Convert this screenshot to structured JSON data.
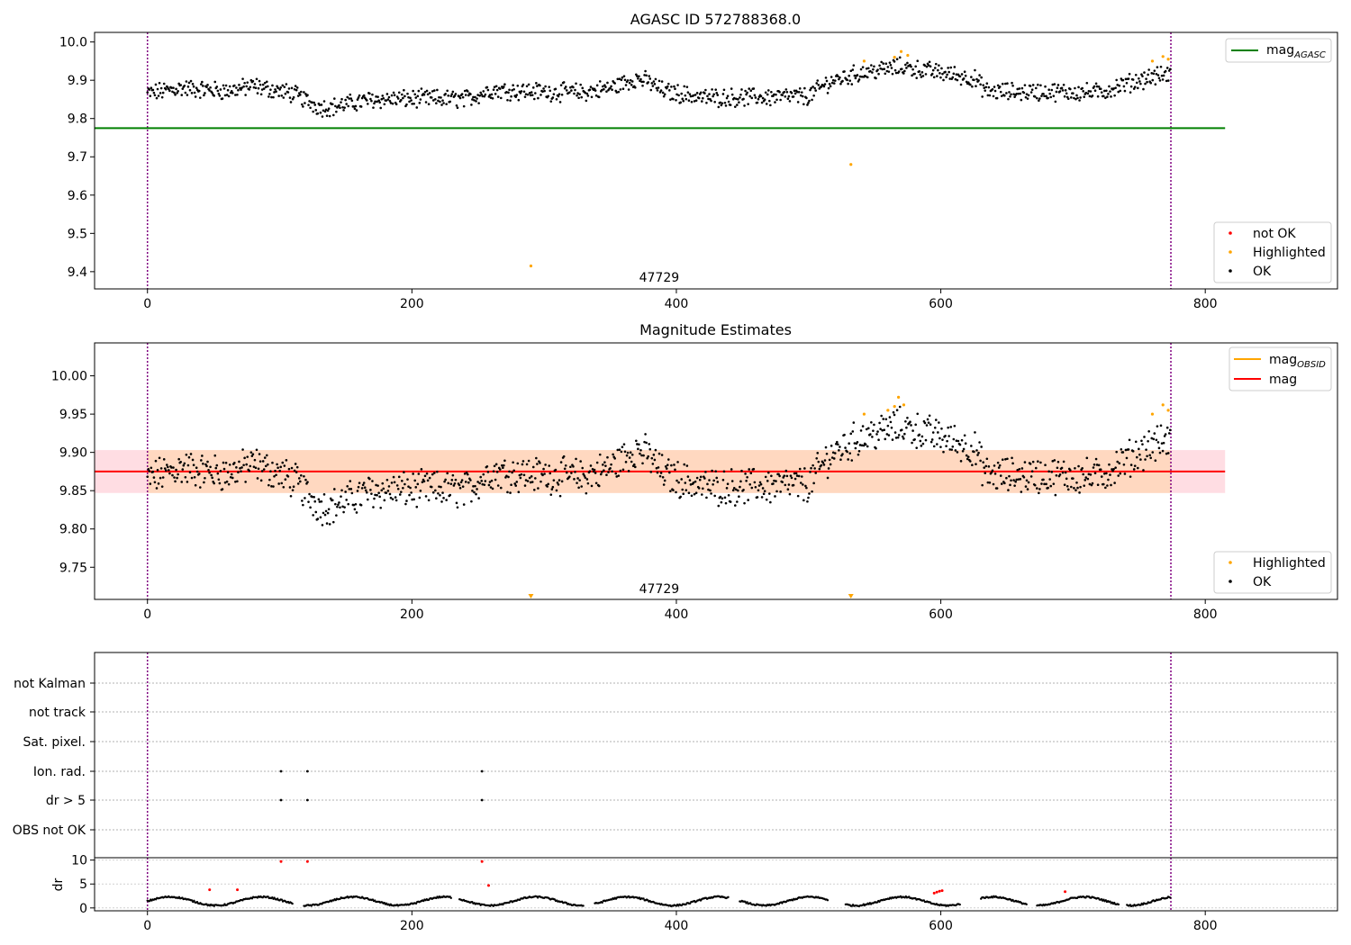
{
  "colors": {
    "ok": "#000000",
    "highlighted": "#ffa500",
    "not_ok": "#ff0000",
    "agasc": "#008000",
    "obsid": "#ffa500",
    "mag": "#ff0000",
    "band_inner": "#ffd8c0",
    "band_outer": "#ffdde3",
    "obs_line": "#800080"
  },
  "chart_data": [
    {
      "type": "scatter",
      "title": "AGASC ID 572788368.0",
      "xlim": [
        -40,
        900
      ],
      "ylim": [
        9.355,
        10.025
      ],
      "xticks": [
        0,
        200,
        400,
        600,
        800
      ],
      "yticks": [
        9.4,
        9.5,
        9.6,
        9.7,
        9.8,
        9.9,
        10.0
      ],
      "ytick_labels": [
        "9.4",
        "9.5",
        "9.6",
        "9.7",
        "9.8",
        "9.9",
        "10.0"
      ],
      "hline": {
        "name": "mag_AGASC",
        "y": 9.775,
        "xmin": -40,
        "xmax": 815
      },
      "obs_boundaries": [
        0,
        774
      ],
      "obs_label": {
        "text": "47729",
        "x": 387,
        "y": 9.385
      },
      "highlighted_points": [
        [
          290,
          9.415
        ],
        [
          532,
          9.68
        ],
        [
          542,
          9.95
        ],
        [
          565,
          9.96
        ],
        [
          570,
          9.975
        ],
        [
          575,
          9.965
        ],
        [
          760,
          9.95
        ],
        [
          768,
          9.962
        ],
        [
          772,
          9.955
        ]
      ],
      "legend_lines": [
        {
          "label": "mag",
          "sub": "AGASC"
        }
      ],
      "legend_points": [
        {
          "label": "not OK"
        },
        {
          "label": "Highlighted"
        },
        {
          "label": "OK"
        }
      ]
    },
    {
      "type": "scatter",
      "title": "Magnitude Estimates",
      "xlim": [
        -40,
        900
      ],
      "ylim": [
        9.708,
        10.043
      ],
      "xticks": [
        0,
        200,
        400,
        600,
        800
      ],
      "yticks": [
        9.75,
        9.8,
        9.85,
        9.9,
        9.95,
        10.0
      ],
      "ytick_labels": [
        "9.75",
        "9.80",
        "9.85",
        "9.90",
        "9.95",
        "10.00"
      ],
      "mag_line": {
        "name": "mag",
        "y": 9.875,
        "xmin": -40,
        "xmax": 815
      },
      "band_inner": [
        9.847,
        9.903
      ],
      "band_outer": [
        9.847,
        9.903
      ],
      "obs_boundaries": [
        0,
        774
      ],
      "obs_label": {
        "text": "47729",
        "x": 387,
        "y": 9.72
      },
      "out_of_range_markers": [
        290,
        532
      ],
      "highlighted_points": [
        [
          542,
          9.95
        ],
        [
          560,
          9.955
        ],
        [
          565,
          9.96
        ],
        [
          568,
          9.972
        ],
        [
          572,
          9.962
        ],
        [
          760,
          9.95
        ],
        [
          768,
          9.962
        ],
        [
          772,
          9.955
        ]
      ],
      "legend_lines": [
        {
          "label": "mag",
          "sub": "OBSID"
        },
        {
          "label": "mag",
          "sub": ""
        }
      ],
      "legend_points": [
        {
          "label": "Highlighted"
        },
        {
          "label": "OK"
        }
      ]
    },
    {
      "type": "scatter",
      "xlim": [
        -40,
        900
      ],
      "flag_rows": [
        "not Kalman",
        "not track",
        "Sat. pixel.",
        "Ion. rad.",
        "dr > 5",
        "OBS not OK"
      ],
      "flag_points": {
        "Ion. rad.": [
          101,
          121,
          253
        ],
        "dr > 5": [
          101,
          121,
          253
        ]
      },
      "obs_boundaries": [
        0,
        774
      ]
    },
    {
      "type": "scatter",
      "ylabel": "dr",
      "xlim": [
        -40,
        900
      ],
      "ylim": [
        -0.6,
        10.5
      ],
      "xticks": [
        0,
        200,
        400,
        600,
        800
      ],
      "yticks": [
        0,
        5,
        10
      ],
      "ytick_labels": [
        "0",
        "5",
        "10"
      ],
      "red_points": [
        [
          47,
          3.8
        ],
        [
          68,
          3.8
        ],
        [
          101,
          9.7
        ],
        [
          121,
          9.7
        ],
        [
          253,
          9.7
        ],
        [
          258,
          4.7
        ],
        [
          595,
          3.1
        ],
        [
          597,
          3.3
        ],
        [
          599,
          3.5
        ],
        [
          601,
          3.6
        ],
        [
          694,
          3.4
        ]
      ],
      "obs_boundaries": [
        0,
        774
      ]
    }
  ]
}
